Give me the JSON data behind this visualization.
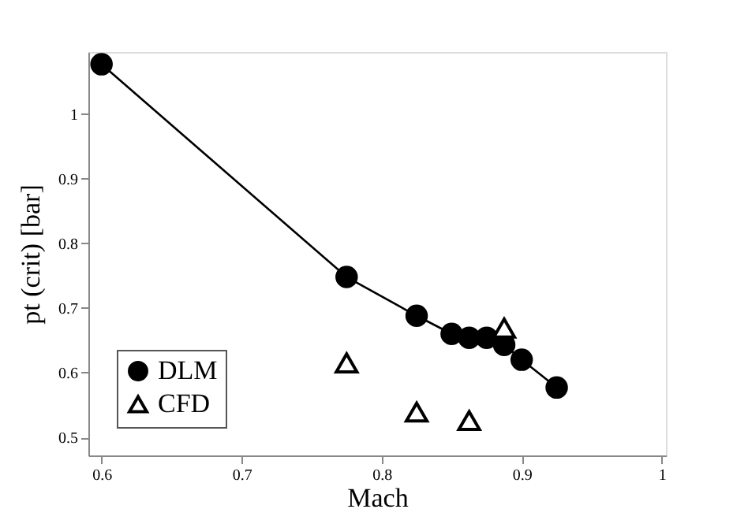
{
  "chart_data": {
    "type": "line",
    "xlabel": "Mach",
    "ylabel": "pt (crit) [bar]",
    "xlim": [
      0.5906,
      1.003
    ],
    "ylim": [
      0.472,
      1.096
    ],
    "xticks": [
      0.6,
      0.7,
      0.8,
      0.9,
      1
    ],
    "yticks": [
      0.5,
      0.6,
      0.7,
      0.8,
      0.9,
      1
    ],
    "grid": false,
    "legend": "bottom left",
    "series": [
      {
        "name": "DLM",
        "marker": "circle",
        "color": "#000000",
        "x": [
          0.6,
          0.775,
          0.825,
          0.85,
          0.8625,
          0.875,
          0.8875,
          0.9,
          0.925
        ],
        "values": [
          1.077,
          0.748,
          0.688,
          0.66,
          0.654,
          0.654,
          0.643,
          0.62,
          0.577
        ]
      },
      {
        "name": "CFD",
        "type": "scatter",
        "marker": "triangle",
        "color": "#000000",
        "x": [
          0.775,
          0.825,
          0.8625,
          0.8875
        ],
        "values": [
          0.615,
          0.539,
          0.526,
          0.669
        ]
      }
    ]
  }
}
